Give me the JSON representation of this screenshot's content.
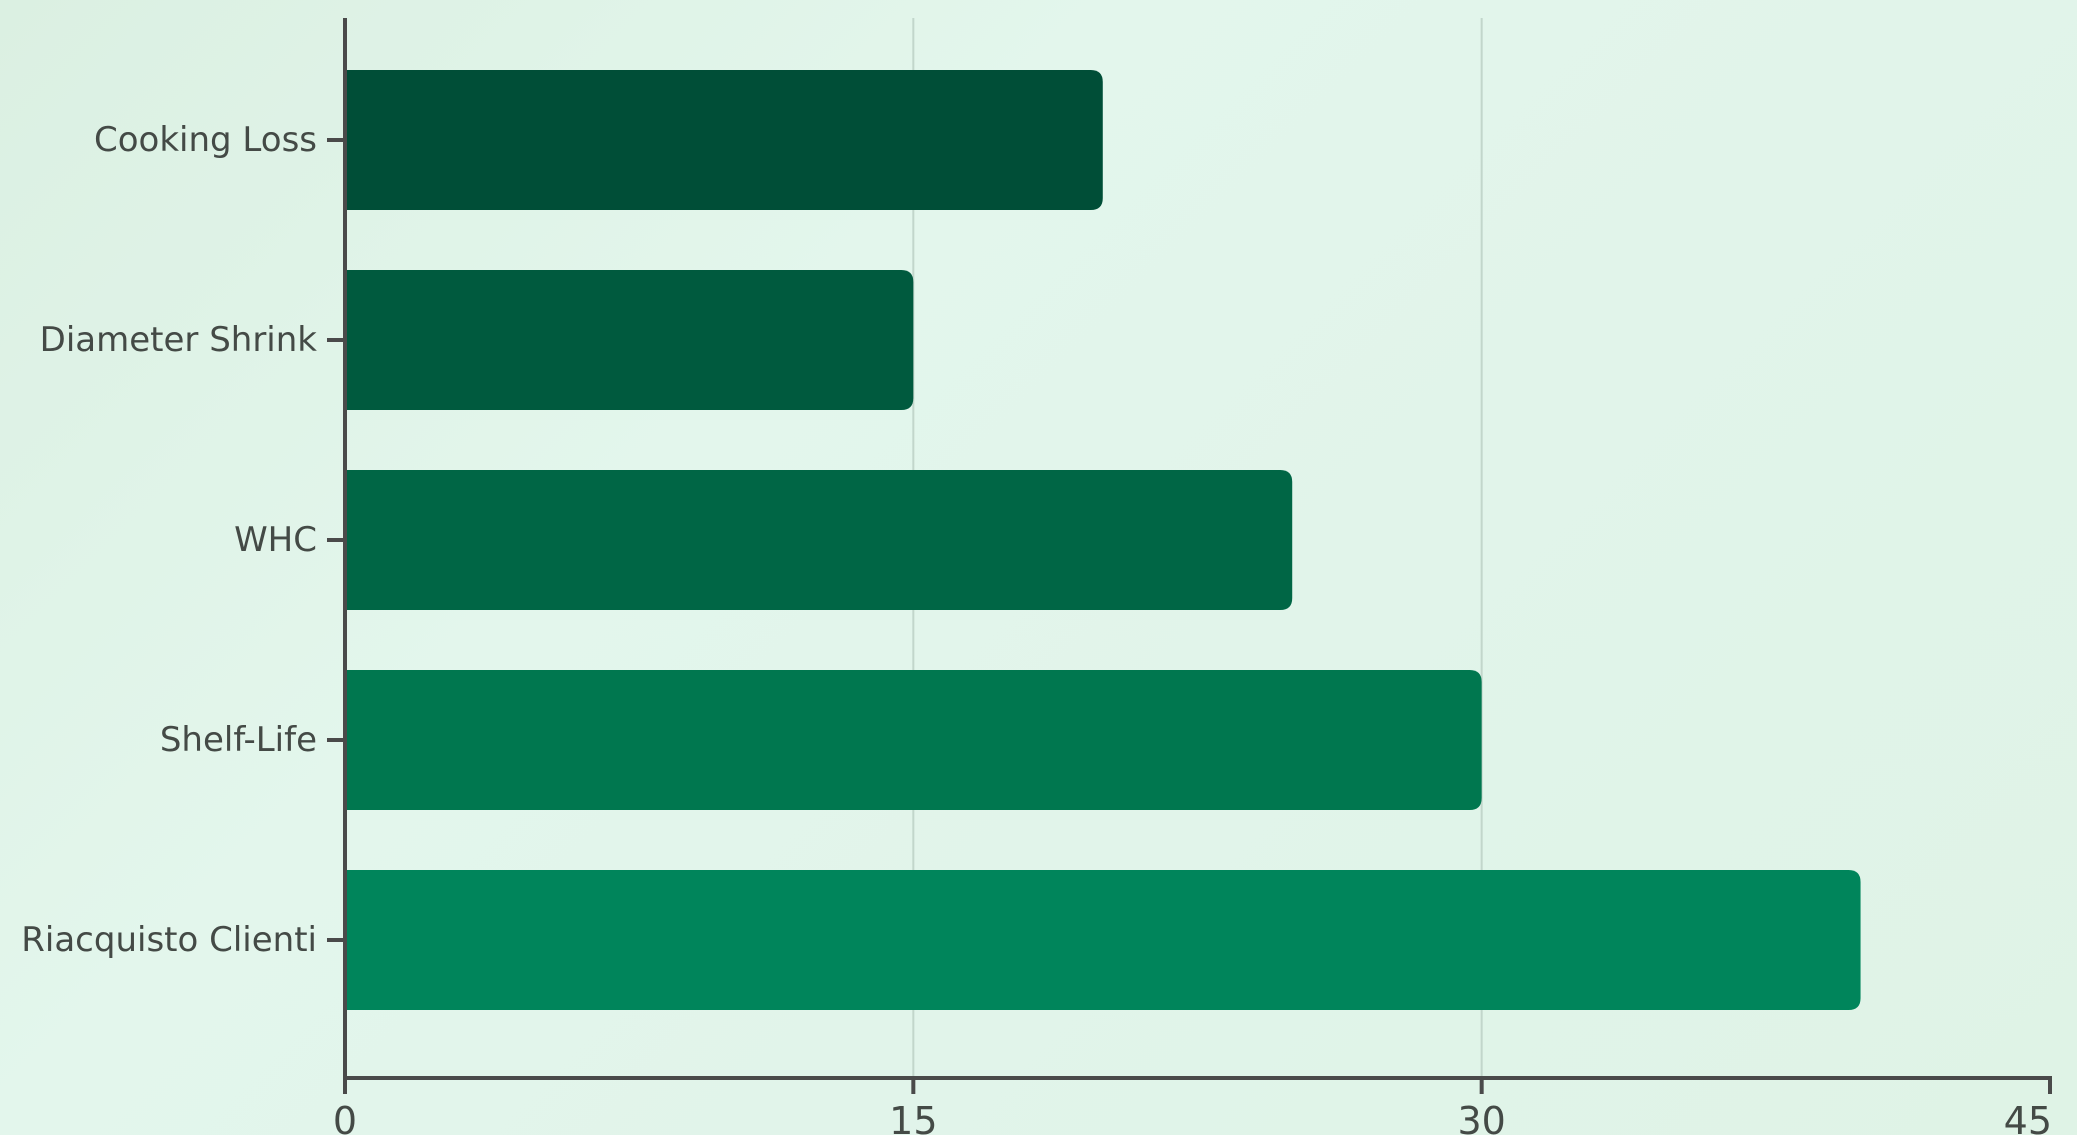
{
  "chart_data": {
    "type": "bar",
    "orientation": "horizontal",
    "categories": [
      "Cooking Loss",
      "Diameter Shrink",
      "WHC",
      "Shelf-Life",
      "Riacquisto Clienti"
    ],
    "values": [
      20,
      15,
      25,
      30,
      40
    ],
    "title": "",
    "xlabel": "",
    "ylabel": "",
    "xlim": [
      0,
      45
    ],
    "xticks": [
      "0",
      "15",
      "30",
      "45"
    ],
    "grid": "vertical",
    "legend": "none",
    "bar_colors": [
      "#004e37",
      "#005a3e",
      "#006645",
      "#00774f",
      "#00855b"
    ],
    "axis_color": "#4a4a4a",
    "grid_color": "#c2d6cb"
  }
}
